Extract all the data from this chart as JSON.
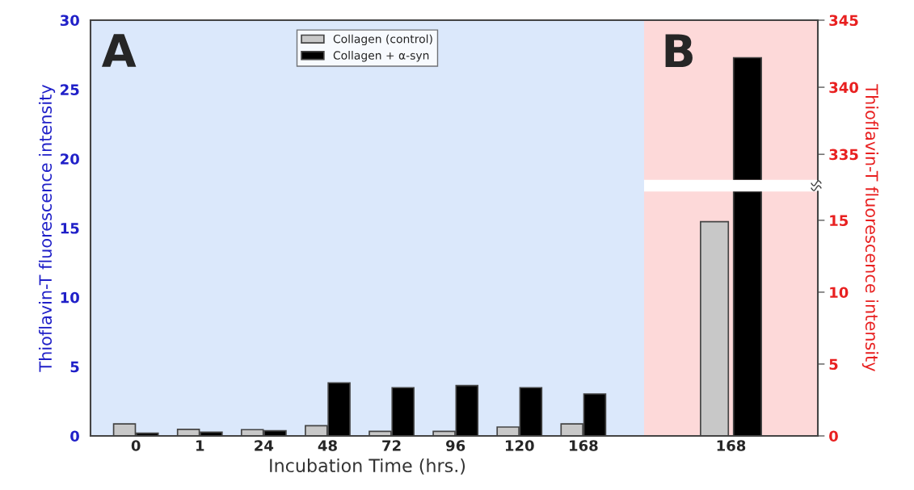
{
  "chart_data": [
    {
      "type": "bar",
      "xlabel": "Incubation Time (hrs.)",
      "ylabel": "Thioflavin-T fluorescence intensity",
      "categories": [
        "0",
        "1",
        "24",
        "48",
        "72",
        "96",
        "120",
        "168"
      ],
      "series": [
        {
          "name": "Collagen (control)",
          "color": "#c8c8c8",
          "values": [
            0.87,
            0.47,
            0.45,
            0.74,
            0.33,
            0.33,
            0.64,
            0.87
          ]
        },
        {
          "name": "Collagen + α-syn",
          "color": "#000000",
          "values": [
            0.2,
            0.27,
            0.37,
            3.83,
            3.48,
            3.63,
            3.48,
            3.03
          ]
        }
      ],
      "ylim": [
        0,
        30
      ],
      "yticks": [
        0,
        5,
        10,
        15,
        20,
        25,
        30
      ],
      "legend": "top",
      "annotations": [
        "A"
      ]
    },
    {
      "type": "bar",
      "categories": [
        "168"
      ],
      "tick_labels": "y",
      "series": [
        {
          "color": "#c8c8c8",
          "values": [
            null
          ],
          "axis": "y2"
        },
        {
          "color": "#000000",
          "values": [
            342.2
          ],
          "axis": "y2"
        }
      ],
      "y2lim": [
        333.1,
        345
      ],
      "y2ticks": [
        335,
        340,
        345
      ],
      "annotations": [
        "B"
      ]
    },
    {
      "type": "bar",
      "categories": [
        "168"
      ],
      "y2label": "Thioflavin-T fluorescence intensity",
      "series": [
        {
          "color": "#c8c8c8",
          "values": [
            14.9
          ],
          "axis": "y2"
        },
        {
          "color": "#000000",
          "values": [
            17
          ],
          "axis": "y2"
        }
      ],
      "y2lim": [
        0,
        17
      ],
      "y2ticks": [
        0,
        5,
        10,
        15
      ]
    }
  ]
}
